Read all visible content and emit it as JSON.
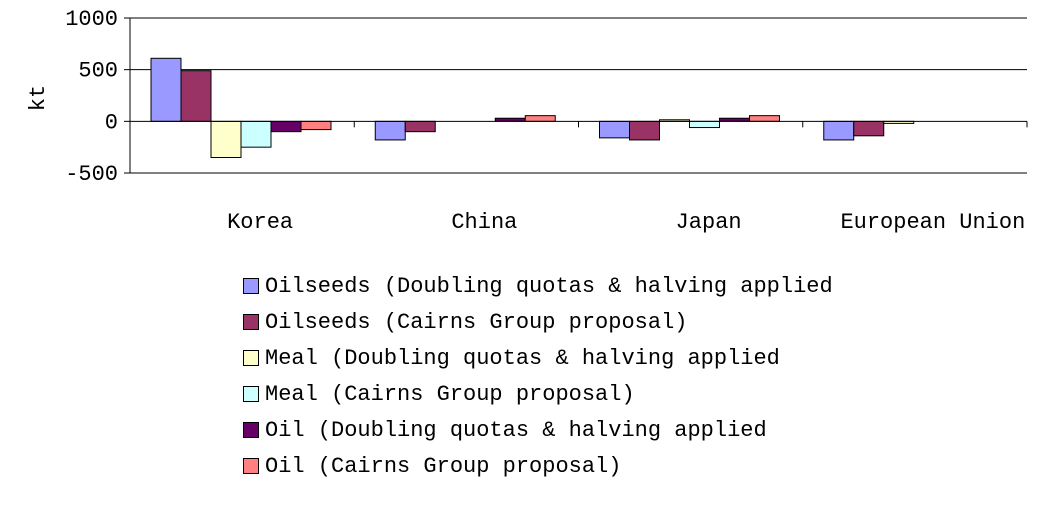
{
  "chart_data": {
    "type": "bar",
    "ylabel": "kt",
    "xlabel": "",
    "ylim": [
      -500,
      1000
    ],
    "yticks": [
      -500,
      0,
      500,
      1000
    ],
    "grid": true,
    "legend_position": "bottom",
    "categories": [
      "Korea",
      "China",
      "Japan",
      "European Union"
    ],
    "series": [
      {
        "name": "Oilseeds (Doubling quotas & halving applied",
        "color": "#9999ff",
        "values": [
          610,
          -180,
          -160,
          -180
        ]
      },
      {
        "name": "Oilseeds (Cairns Group proposal)",
        "color": "#993366",
        "values": [
          490,
          -100,
          -180,
          -140
        ]
      },
      {
        "name": "Meal (Doubling quotas & halving applied",
        "color": "#ffffcc",
        "values": [
          -350,
          0,
          15,
          -20
        ]
      },
      {
        "name": "Meal (Cairns Group proposal)",
        "color": "#ccffff",
        "values": [
          -250,
          0,
          -60,
          0
        ]
      },
      {
        "name": "Oil (Doubling quotas & halving applied",
        "color": "#660066",
        "values": [
          -100,
          30,
          30,
          0
        ]
      },
      {
        "name": "Oil (Cairns Group proposal)",
        "color": "#ff8080",
        "values": [
          -80,
          55,
          55,
          0
        ]
      }
    ]
  }
}
